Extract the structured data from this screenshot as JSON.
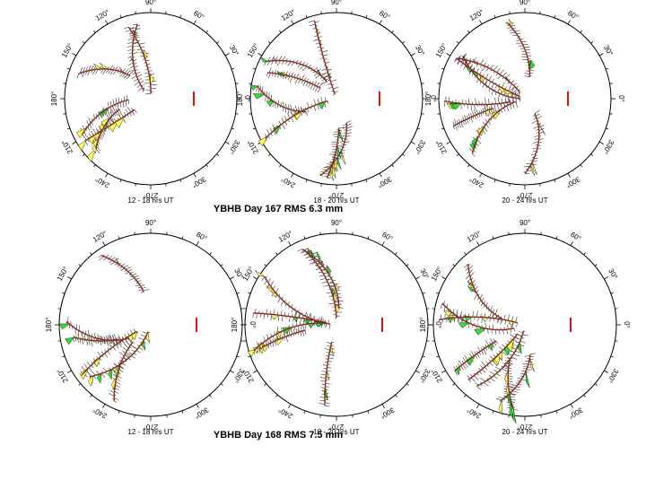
{
  "figures": [
    {
      "title": "YBHB Day 167 RMS 6.3 mm",
      "panels": [
        {
          "caption": "12 - 18 hrs UT"
        },
        {
          "caption": "18 - 20 hrs UT"
        },
        {
          "caption": "20 - 24 hrs UT"
        }
      ]
    },
    {
      "title": "YBHB Day 168 RMS 7.5 mm",
      "panels": [
        {
          "caption": "12 - 18 hrs UT"
        },
        {
          "caption": "18 - 20 hrs UT"
        },
        {
          "caption": "20 - 24 hrs UT"
        }
      ]
    }
  ],
  "azimuth_labels": [
    "0°",
    "30°",
    "60°",
    "90°",
    "120°",
    "150°",
    "180°",
    "210°",
    "240°",
    "270°",
    "300°",
    "330°"
  ]
}
